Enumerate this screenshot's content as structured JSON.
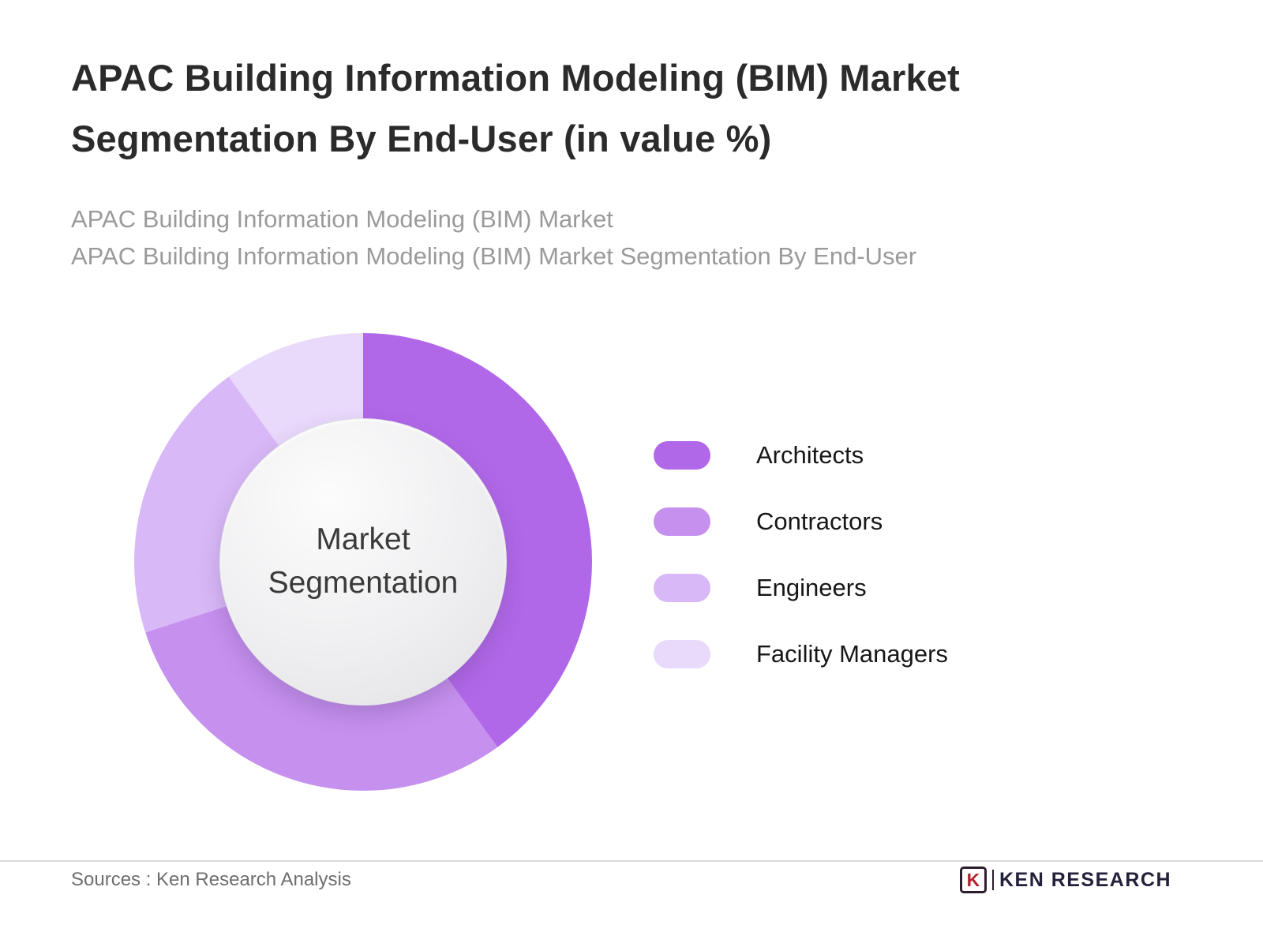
{
  "header": {
    "title_line1": "APAC Building Information Modeling (BIM) Market",
    "title_line2": "Segmentation By End-User (in value %)",
    "subtitle_line1": "APAC Building Information Modeling (BIM) Market",
    "subtitle_line2": "APAC Building Information Modeling (BIM) Market Segmentation By End-User"
  },
  "chart_data": {
    "type": "pie",
    "variant": "donut",
    "title": "APAC Building Information Modeling (BIM) Market Segmentation By End-User (in value %)",
    "center_label": "Market Segmentation",
    "categories": [
      "Architects",
      "Contractors",
      "Engineers",
      "Facility Managers"
    ],
    "values": [
      40,
      30,
      20,
      10
    ],
    "colors": [
      "#b168e8",
      "#c690ef",
      "#d9b8f7",
      "#e9d9fb"
    ],
    "start_angle_deg": 0,
    "direction": "clockwise",
    "legend_position": "right",
    "data_labels": "none"
  },
  "legend": {
    "items": [
      {
        "label": "Architects",
        "color": "#b168e8"
      },
      {
        "label": "Contractors",
        "color": "#c690ef"
      },
      {
        "label": "Engineers",
        "color": "#d9b8f7"
      },
      {
        "label": "Facility Managers",
        "color": "#e9d9fb"
      }
    ]
  },
  "footer": {
    "sources": "Sources : Ken Research Analysis",
    "brand_initial": "K",
    "brand": "KEN RESEARCH"
  }
}
